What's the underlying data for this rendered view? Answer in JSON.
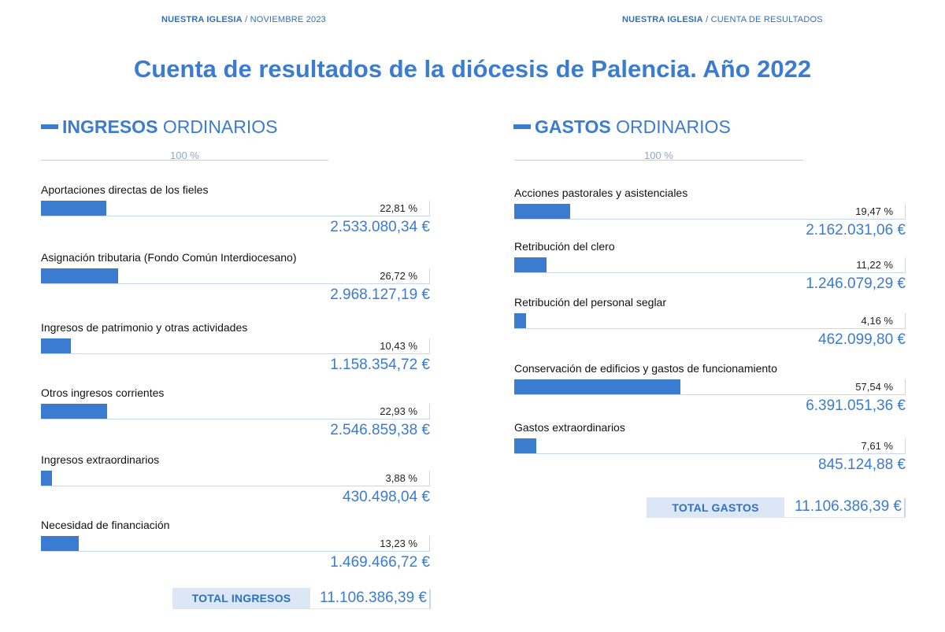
{
  "header": {
    "left": {
      "brand": "NUESTRA IGLESIA",
      "sub": "NOVIEMBRE 2023"
    },
    "right": {
      "brand": "NUESTRA IGLESIA",
      "sub": "CUENTA DE RESULTADOS"
    },
    "separator": "/"
  },
  "title": "Cuenta de resultados de la diócesis de Palencia. Año 2022",
  "ingresos": {
    "heading_strong": "INGRESOS",
    "heading_rest": "ORDINARIOS",
    "scale_label": "100 %",
    "items": [
      {
        "label": "Aportaciones directas de los fieles",
        "pct": "22,81 %",
        "fraction": 0.2281,
        "amount": "2.533.080,34 €"
      },
      {
        "label": "Asignación tributaria (Fondo Común Interdiocesano)",
        "pct": "26,72 %",
        "fraction": 0.2672,
        "amount": "2.968.127,19 €"
      },
      {
        "label": "Ingresos de patrimonio y otras actividades",
        "pct": "10,43 %",
        "fraction": 0.1043,
        "amount": "1.158.354,72 €"
      },
      {
        "label": "Otros ingresos corrientes",
        "pct": "22,93 %",
        "fraction": 0.2293,
        "amount": "2.546.859,38 €"
      },
      {
        "label": "Ingresos extraordinarios",
        "pct": "3,88 %",
        "fraction": 0.0388,
        "amount": "430.498,04 €"
      },
      {
        "label": "Necesidad de financiación",
        "pct": "13,23 %",
        "fraction": 0.1323,
        "amount": "1.469.466,72 €"
      }
    ],
    "total_label": "TOTAL INGRESOS",
    "total_amount": "11.106.386,39 €"
  },
  "gastos": {
    "heading_strong": "GASTOS",
    "heading_rest": "ORDINARIOS",
    "scale_label": "100 %",
    "items": [
      {
        "label": "Acciones pastorales y asistenciales",
        "pct": "19,47 %",
        "fraction": 0.1947,
        "amount": "2.162.031,06 €"
      },
      {
        "label": "Retribución del clero",
        "pct": "11,22 %",
        "fraction": 0.1122,
        "amount": "1.246.079,29 €"
      },
      {
        "label": "Retribución del personal seglar",
        "pct": "4,16 %",
        "fraction": 0.0416,
        "amount": "462.099,80 €"
      },
      {
        "label": "Conservación de edificios y gastos de funcionamiento",
        "pct": "57,54 %",
        "fraction": 0.5754,
        "amount": "6.391.051,36 €"
      },
      {
        "label": "Gastos extraordinarios",
        "pct": "7,61 %",
        "fraction": 0.0761,
        "amount": "845.124,88 €"
      }
    ],
    "total_label": "TOTAL GASTOS",
    "total_amount": "11.106.386,39 €"
  },
  "colors": {
    "accent": "#3b7bd0",
    "header": "#2f6fbf",
    "total_bg": "#dce7f5",
    "line": "#c6d7ee"
  }
}
